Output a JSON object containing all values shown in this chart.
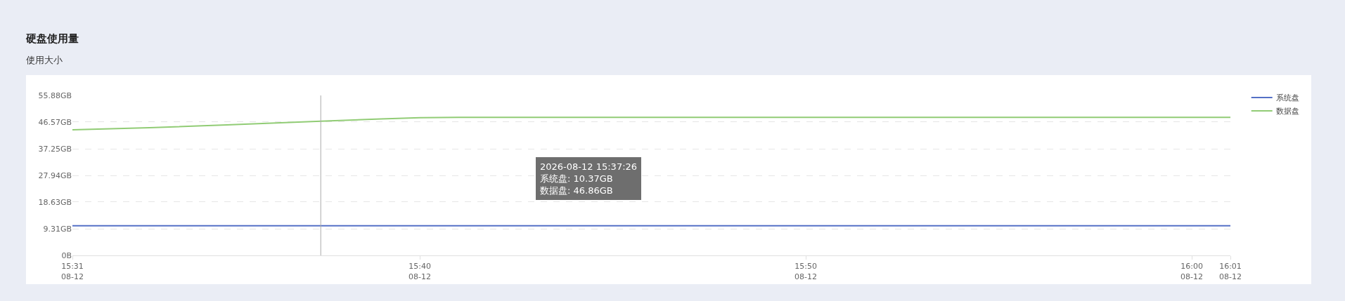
{
  "chart_data": {
    "type": "line",
    "title": "硬盘使用量",
    "subtitle": "使用大小",
    "series": [
      {
        "name": "系统盘",
        "color": "#5470c6",
        "x": [
          "2026-08-12T15:31",
          "2026-08-12T16:01"
        ],
        "values": [
          10.37,
          10.37
        ]
      },
      {
        "name": "数据盘",
        "color": "#91cc75",
        "x": [
          "2026-08-12T15:31",
          "2026-08-12T15:33",
          "2026-08-12T15:35",
          "2026-08-12T15:37:26",
          "2026-08-12T15:39",
          "2026-08-12T15:40",
          "2026-08-12T15:41",
          "2026-08-12T16:01"
        ],
        "values": [
          43.9,
          44.6,
          45.6,
          46.86,
          47.7,
          48.1,
          48.2,
          48.2
        ]
      }
    ],
    "xlim": [
      "2026-08-12T15:31",
      "2026-08-12T16:01"
    ],
    "xticks": [
      {
        "value": "2026-08-12T15:31",
        "label": "15:31\n08-12"
      },
      {
        "value": "2026-08-12T15:40",
        "label": "15:40\n08-12"
      },
      {
        "value": "2026-08-12T15:50",
        "label": "15:50\n08-12"
      },
      {
        "value": "2026-08-12T16:00",
        "label": "16:00\n08-12"
      },
      {
        "value": "2026-08-12T16:01",
        "label": "16:01\n08-12"
      }
    ],
    "ylim": [
      0,
      55.88
    ],
    "yticks": [
      {
        "value": 0,
        "label": "0B"
      },
      {
        "value": 9.31,
        "label": "9.31GB"
      },
      {
        "value": 18.63,
        "label": "18.63GB"
      },
      {
        "value": 27.94,
        "label": "27.94GB"
      },
      {
        "value": 37.25,
        "label": "37.25GB"
      },
      {
        "value": 46.57,
        "label": "46.57GB"
      },
      {
        "value": 55.88,
        "label": "55.88GB"
      }
    ],
    "ref_lines": [
      {
        "axis": "x",
        "value": "2026-08-12T15:37:26",
        "color": "#aaaaaa"
      }
    ],
    "annotations": [
      "2026-08-12 15:37:26\n系统盘: 10.37GB\n数据盘: 46.86GB"
    ],
    "grid": "y",
    "legend": "top right",
    "marker": "none",
    "line_style": "solid"
  }
}
